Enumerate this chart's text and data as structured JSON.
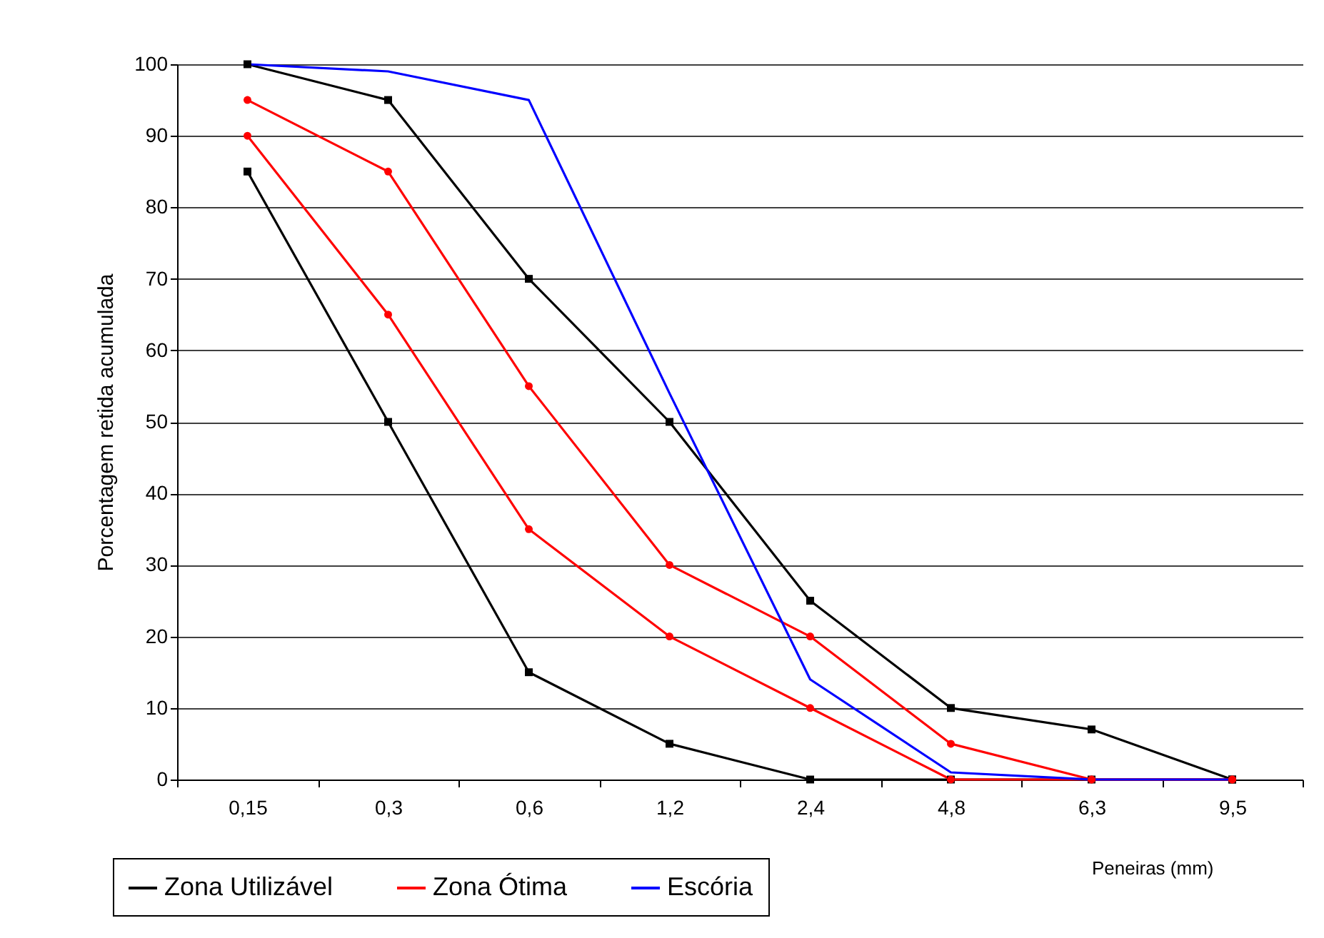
{
  "chart_data": {
    "type": "line",
    "xlabel": "Peneiras (mm)",
    "ylabel": "Porcentagem retida acumulada",
    "categories": [
      "0,15",
      "0,3",
      "0,6",
      "1,2",
      "2,4",
      "4,8",
      "6,3",
      "9,5"
    ],
    "ylim": [
      0,
      100
    ],
    "yticks": [
      0,
      10,
      20,
      30,
      40,
      50,
      60,
      70,
      80,
      90,
      100
    ],
    "grid": "y",
    "legend": "bottom",
    "series": [
      {
        "name": "Zona Utilizável",
        "color": "#000000",
        "marker": "square",
        "values": [
          100,
          95,
          70,
          50,
          25,
          10,
          7,
          0
        ]
      },
      {
        "color": "#000000",
        "marker": "square",
        "values": [
          85,
          50,
          15,
          5,
          0,
          0,
          0,
          0
        ]
      },
      {
        "name": "Zona Ótima",
        "color": "#ff0000",
        "marker": "circle",
        "values": [
          95,
          85,
          55,
          30,
          20,
          5,
          0,
          0
        ]
      },
      {
        "color": "#ff0000",
        "marker": "circle",
        "values": [
          90,
          65,
          35,
          20,
          10,
          0,
          0,
          0
        ]
      },
      {
        "name": "Escória",
        "color": "#0000ff",
        "marker": "none",
        "values": [
          100,
          99,
          95,
          54,
          14,
          1,
          0,
          0
        ]
      }
    ]
  }
}
